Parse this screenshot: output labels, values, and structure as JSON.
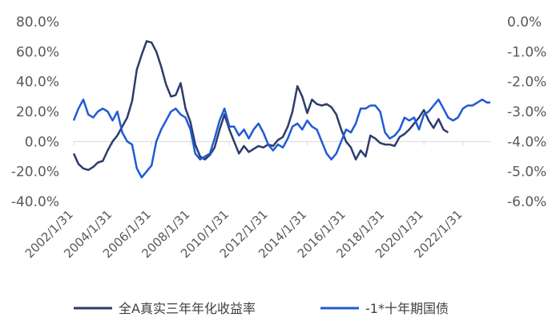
{
  "chart_data": {
    "type": "line",
    "title": "",
    "xlabel": "",
    "ylabel_left": "",
    "ylabel_right": "",
    "x_range": [
      "2002/1/31",
      "2023/6/30"
    ],
    "x_tick_labels": [
      "2002/1/31",
      "2004/1/31",
      "2006/1/31",
      "2008/1/31",
      "2010/1/31",
      "2012/1/31",
      "2014/1/31",
      "2016/1/31",
      "2018/1/31",
      "2020/1/31",
      "2022/1/31"
    ],
    "y_left": {
      "range": [
        -40,
        80
      ],
      "ticks": [
        -40,
        -20,
        0,
        20,
        40,
        60,
        80
      ],
      "tick_labels": [
        "-40.0%",
        "-20.0%",
        "0.0%",
        "20.0%",
        "40.0%",
        "60.0%",
        "80.0%"
      ]
    },
    "y_right": {
      "range": [
        -6,
        0
      ],
      "ticks": [
        -6,
        -5,
        -4,
        -3,
        -2,
        -1,
        0
      ],
      "tick_labels": [
        "-6.0%",
        "-5.0%",
        "-4.0%",
        "-3.0%",
        "-2.0%",
        "-1.0%",
        "0.0%"
      ]
    },
    "grid": false,
    "legend_position": "bottom",
    "series": [
      {
        "name": "全A真实三年年化收益率",
        "axis": "left",
        "color": "#2E3B6C",
        "points": [
          [
            "2002/1/31",
            -8
          ],
          [
            "2002/4/30",
            -15
          ],
          [
            "2002/7/31",
            -18
          ],
          [
            "2002/10/31",
            -19
          ],
          [
            "2003/1/31",
            -17
          ],
          [
            "2003/4/30",
            -14
          ],
          [
            "2003/7/31",
            -13
          ],
          [
            "2003/10/31",
            -6
          ],
          [
            "2004/1/31",
            0
          ],
          [
            "2004/4/30",
            4
          ],
          [
            "2004/7/31",
            10
          ],
          [
            "2004/10/31",
            16
          ],
          [
            "2005/1/31",
            27
          ],
          [
            "2005/4/30",
            48
          ],
          [
            "2005/7/31",
            58
          ],
          [
            "2005/10/31",
            67
          ],
          [
            "2006/1/31",
            66
          ],
          [
            "2006/4/30",
            60
          ],
          [
            "2006/7/31",
            50
          ],
          [
            "2006/10/31",
            38
          ],
          [
            "2007/1/31",
            30
          ],
          [
            "2007/4/30",
            31
          ],
          [
            "2007/7/31",
            39
          ],
          [
            "2007/10/31",
            22
          ],
          [
            "2008/1/31",
            13
          ],
          [
            "2008/4/30",
            -2
          ],
          [
            "2008/7/31",
            -10
          ],
          [
            "2008/10/31",
            -12
          ],
          [
            "2009/1/31",
            -9
          ],
          [
            "2009/4/30",
            -4
          ],
          [
            "2009/7/31",
            8
          ],
          [
            "2009/10/31",
            18
          ],
          [
            "2010/1/31",
            8
          ],
          [
            "2010/4/30",
            0
          ],
          [
            "2010/7/31",
            -8
          ],
          [
            "2010/10/31",
            -3
          ],
          [
            "2011/1/31",
            -7
          ],
          [
            "2011/4/30",
            -5
          ],
          [
            "2011/7/31",
            -3
          ],
          [
            "2011/10/31",
            -4
          ],
          [
            "2012/1/31",
            -2
          ],
          [
            "2012/4/30",
            -3
          ],
          [
            "2012/7/31",
            1
          ],
          [
            "2012/10/31",
            3
          ],
          [
            "2013/1/31",
            10
          ],
          [
            "2013/4/30",
            20
          ],
          [
            "2013/7/31",
            37
          ],
          [
            "2013/10/31",
            30
          ],
          [
            "2014/1/31",
            19
          ],
          [
            "2014/4/30",
            28
          ],
          [
            "2014/7/31",
            25
          ],
          [
            "2014/10/31",
            24
          ],
          [
            "2015/1/31",
            25
          ],
          [
            "2015/4/30",
            23
          ],
          [
            "2015/7/31",
            18
          ],
          [
            "2015/10/31",
            8
          ],
          [
            "2016/1/31",
            0
          ],
          [
            "2016/4/30",
            -4
          ],
          [
            "2016/7/31",
            -12
          ],
          [
            "2016/10/31",
            -6
          ],
          [
            "2017/1/31",
            -10
          ],
          [
            "2017/4/30",
            4
          ],
          [
            "2017/7/31",
            2
          ],
          [
            "2017/10/31",
            -1
          ],
          [
            "2018/1/31",
            -2
          ],
          [
            "2018/4/30",
            -2
          ],
          [
            "2018/7/31",
            -3
          ],
          [
            "2018/10/31",
            3
          ],
          [
            "2019/1/31",
            5
          ],
          [
            "2019/4/30",
            8
          ],
          [
            "2019/7/31",
            12
          ],
          [
            "2019/10/31",
            16
          ],
          [
            "2020/1/31",
            21
          ],
          [
            "2020/4/30",
            14
          ],
          [
            "2020/7/31",
            9
          ],
          [
            "2020/10/31",
            15
          ],
          [
            "2021/1/31",
            8
          ],
          [
            "2021/4/30",
            6
          ]
        ]
      },
      {
        "name": "-1*十年期国债",
        "axis": "right",
        "color": "#1F5BD6",
        "points": [
          [
            "2002/1/31",
            -3.3
          ],
          [
            "2002/4/30",
            -2.9
          ],
          [
            "2002/7/31",
            -2.6
          ],
          [
            "2002/10/31",
            -3.1
          ],
          [
            "2003/1/31",
            -3.2
          ],
          [
            "2003/4/30",
            -3.0
          ],
          [
            "2003/7/31",
            -2.9
          ],
          [
            "2003/10/31",
            -3.0
          ],
          [
            "2004/1/31",
            -3.3
          ],
          [
            "2004/4/30",
            -3.0
          ],
          [
            "2004/7/31",
            -3.7
          ],
          [
            "2004/10/31",
            -4.0
          ],
          [
            "2005/1/31",
            -4.1
          ],
          [
            "2005/4/30",
            -4.9
          ],
          [
            "2005/7/31",
            -5.2
          ],
          [
            "2005/10/31",
            -5.0
          ],
          [
            "2006/1/31",
            -4.8
          ],
          [
            "2006/4/30",
            -4.0
          ],
          [
            "2006/7/31",
            -3.6
          ],
          [
            "2006/10/31",
            -3.3
          ],
          [
            "2007/1/31",
            -3.0
          ],
          [
            "2007/4/30",
            -2.9
          ],
          [
            "2007/7/31",
            -3.1
          ],
          [
            "2007/10/31",
            -3.2
          ],
          [
            "2008/1/31",
            -3.6
          ],
          [
            "2008/4/30",
            -4.4
          ],
          [
            "2008/7/31",
            -4.6
          ],
          [
            "2008/10/31",
            -4.5
          ],
          [
            "2009/1/31",
            -4.4
          ],
          [
            "2009/4/30",
            -3.9
          ],
          [
            "2009/7/31",
            -3.3
          ],
          [
            "2009/10/31",
            -2.9
          ],
          [
            "2010/1/31",
            -3.5
          ],
          [
            "2010/4/30",
            -3.5
          ],
          [
            "2010/7/31",
            -3.8
          ],
          [
            "2010/10/31",
            -3.6
          ],
          [
            "2011/1/31",
            -3.9
          ],
          [
            "2011/4/30",
            -3.6
          ],
          [
            "2011/7/31",
            -3.4
          ],
          [
            "2011/10/31",
            -3.7
          ],
          [
            "2012/1/31",
            -4.1
          ],
          [
            "2012/4/30",
            -4.3
          ],
          [
            "2012/7/31",
            -4.1
          ],
          [
            "2012/10/31",
            -4.2
          ],
          [
            "2013/1/31",
            -3.9
          ],
          [
            "2013/4/30",
            -3.5
          ],
          [
            "2013/7/31",
            -3.4
          ],
          [
            "2013/10/31",
            -3.6
          ],
          [
            "2014/1/31",
            -3.3
          ],
          [
            "2014/4/30",
            -3.5
          ],
          [
            "2014/7/31",
            -3.6
          ],
          [
            "2014/10/31",
            -4.0
          ],
          [
            "2015/1/31",
            -4.4
          ],
          [
            "2015/4/30",
            -4.6
          ],
          [
            "2015/7/31",
            -4.4
          ],
          [
            "2015/10/31",
            -4.0
          ],
          [
            "2016/1/31",
            -3.6
          ],
          [
            "2016/4/30",
            -3.7
          ],
          [
            "2016/7/31",
            -3.4
          ],
          [
            "2016/10/31",
            -2.9
          ],
          [
            "2017/1/31",
            -2.9
          ],
          [
            "2017/4/30",
            -2.8
          ],
          [
            "2017/7/31",
            -2.8
          ],
          [
            "2017/10/31",
            -3.0
          ],
          [
            "2018/1/31",
            -3.7
          ],
          [
            "2018/4/30",
            -3.9
          ],
          [
            "2018/7/31",
            -3.8
          ],
          [
            "2018/10/31",
            -3.6
          ],
          [
            "2019/1/31",
            -3.2
          ],
          [
            "2019/4/30",
            -3.3
          ],
          [
            "2019/7/31",
            -3.2
          ],
          [
            "2019/10/31",
            -3.6
          ],
          [
            "2020/1/31",
            -3.1
          ],
          [
            "2020/4/30",
            -3.0
          ],
          [
            "2020/7/31",
            -2.8
          ],
          [
            "2020/10/31",
            -2.6
          ],
          [
            "2021/1/31",
            -2.9
          ],
          [
            "2021/4/30",
            -3.2
          ],
          [
            "2021/7/31",
            -3.3
          ],
          [
            "2021/10/31",
            -3.2
          ],
          [
            "2022/1/31",
            -2.9
          ],
          [
            "2022/4/30",
            -2.8
          ],
          [
            "2022/7/31",
            -2.8
          ],
          [
            "2022/10/31",
            -2.7
          ],
          [
            "2023/1/31",
            -2.6
          ],
          [
            "2023/4/30",
            -2.7
          ],
          [
            "2023/6/30",
            -2.7
          ]
        ]
      }
    ]
  },
  "legend": {
    "series_1_label": "全A真实三年年化收益率",
    "series_2_label": "-1*十年期国债"
  }
}
